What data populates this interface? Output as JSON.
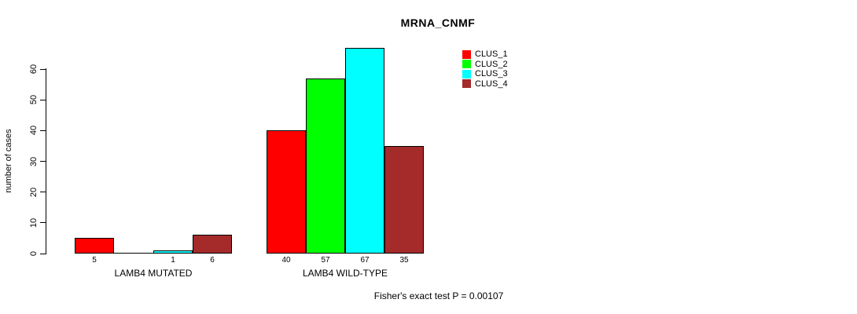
{
  "chart_data": {
    "type": "bar",
    "title": "MRNA_CNMF",
    "ylabel": "number of cases",
    "ylim": [
      0,
      67
    ],
    "yticks": [
      0,
      10,
      20,
      30,
      40,
      50,
      60
    ],
    "grid": false,
    "legend_position": "top-right",
    "categories": [
      "LAMB4 MUTATED",
      "LAMB4 WILD-TYPE"
    ],
    "series": [
      {
        "name": "CLUS_1",
        "color": "#FF0000",
        "values": [
          5,
          40
        ]
      },
      {
        "name": "CLUS_2",
        "color": "#00FF00",
        "values": [
          0,
          57
        ]
      },
      {
        "name": "CLUS_3",
        "color": "#00FFFF",
        "values": [
          1,
          67
        ]
      },
      {
        "name": "CLUS_4",
        "color": "#A52A2A",
        "values": [
          6,
          35
        ]
      }
    ],
    "bar_labels": [
      [
        "5",
        "",
        "1",
        "6"
      ],
      [
        "40",
        "57",
        "67",
        "35"
      ]
    ],
    "annotation": "Fisher's exact test P = 0.00107"
  },
  "legend": {
    "items": [
      {
        "label": "CLUS_1",
        "color": "#FF0000"
      },
      {
        "label": "CLUS_2",
        "color": "#00FF00"
      },
      {
        "label": "CLUS_3",
        "color": "#00FFFF"
      },
      {
        "label": "CLUS_4",
        "color": "#A52A2A"
      }
    ]
  }
}
